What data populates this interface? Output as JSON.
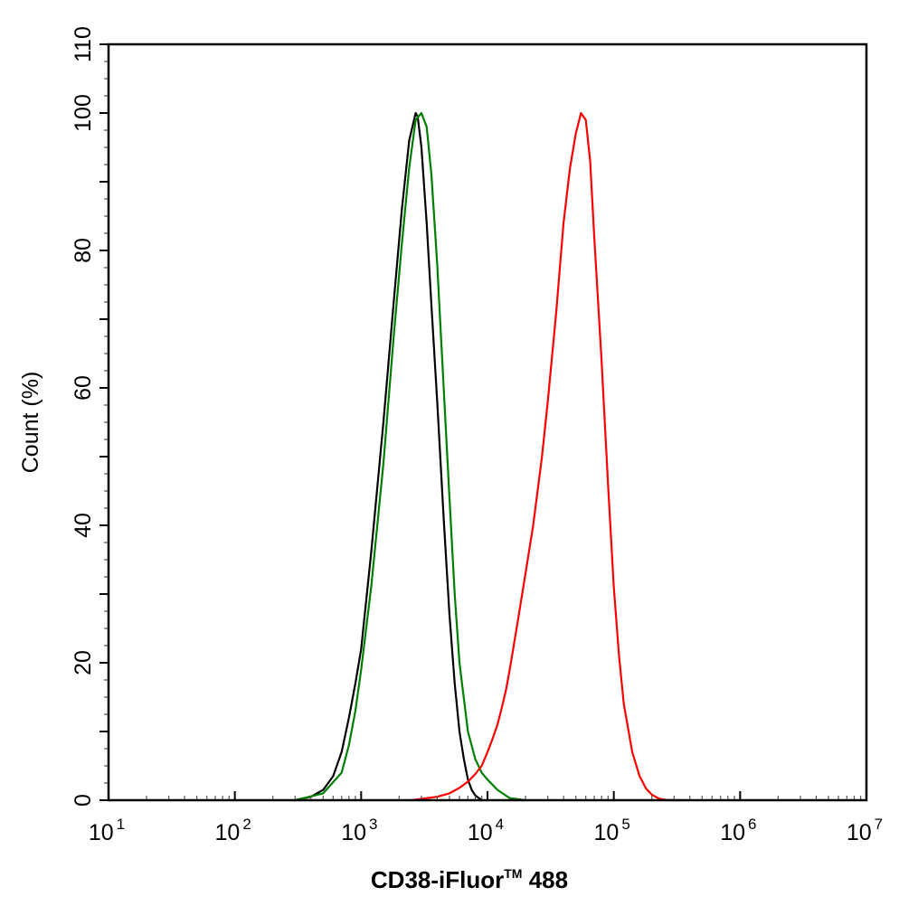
{
  "chart_data": {
    "type": "line",
    "title": "",
    "xlabel": {
      "main": "CD38-iFluor",
      "superscript": "TM",
      "suffix": " 488"
    },
    "ylabel": "Count  (%)",
    "xscale": "log",
    "xlim": [
      10,
      10000000
    ],
    "ylim": [
      0,
      110
    ],
    "x_ticks": [
      {
        "value": 10,
        "base": "10",
        "exp": "1"
      },
      {
        "value": 100,
        "base": "10",
        "exp": "2"
      },
      {
        "value": 1000,
        "base": "10",
        "exp": "3"
      },
      {
        "value": 10000,
        "base": "10",
        "exp": "4"
      },
      {
        "value": 100000,
        "base": "10",
        "exp": "5"
      },
      {
        "value": 1000000,
        "base": "10",
        "exp": "6"
      },
      {
        "value": 10000000,
        "base": "10",
        "exp": "7"
      }
    ],
    "y_ticks": [
      0,
      20,
      40,
      60,
      80,
      100,
      110
    ],
    "grid": false,
    "legend": "none",
    "series": [
      {
        "color": "#000000",
        "x": [
          300,
          400,
          500,
          600,
          700,
          800,
          900,
          1000,
          1200,
          1500,
          1800,
          2100,
          2400,
          2700,
          2800,
          3000,
          3300,
          3600,
          4000,
          4500,
          5000,
          5500,
          6000,
          6500,
          7000,
          7500,
          8000,
          9000
        ],
        "y": [
          0,
          0.5,
          1.5,
          3.5,
          7,
          12,
          17,
          22,
          36,
          55,
          72,
          86,
          96,
          100,
          99.5,
          95,
          84,
          72,
          58,
          41,
          27,
          17,
          10,
          6,
          3,
          1.5,
          0.7,
          0
        ]
      },
      {
        "color": "#008000",
        "x": [
          300,
          500,
          700,
          800,
          900,
          1000,
          1200,
          1500,
          1800,
          2100,
          2400,
          2700,
          3000,
          3300,
          3600,
          4000,
          4500,
          5000,
          5500,
          6000,
          7000,
          8000,
          9000,
          10000,
          12000,
          15000,
          20000
        ],
        "y": [
          0,
          1,
          4,
          8,
          13,
          19,
          31,
          49,
          67,
          81,
          92,
          99,
          100,
          98,
          91,
          78,
          60,
          44,
          30,
          20,
          10,
          6,
          4,
          3,
          1.5,
          0.3,
          0
        ]
      },
      {
        "color": "#ff0000",
        "x": [
          2500,
          3000,
          4000,
          5000,
          6000,
          7000,
          8000,
          9000,
          10000,
          11000,
          12000,
          13000,
          14000,
          15000,
          17000,
          20000,
          23000,
          27000,
          30000,
          35000,
          40000,
          45000,
          50000,
          55000,
          60000,
          65000,
          70000,
          80000,
          90000,
          100000,
          110000,
          120000,
          140000,
          160000,
          180000,
          200000,
          230000,
          260000,
          300000,
          350000
        ],
        "y": [
          0,
          0.2,
          0.5,
          1,
          1.8,
          2.7,
          3.8,
          5,
          7,
          9,
          11,
          13.5,
          16,
          19,
          25,
          33,
          40,
          50,
          58,
          71,
          84,
          92,
          97,
          100,
          99,
          93,
          82,
          64,
          46,
          31,
          21,
          14,
          7,
          3.5,
          1.7,
          0.8,
          0.2,
          0.05,
          0,
          0
        ]
      }
    ]
  }
}
